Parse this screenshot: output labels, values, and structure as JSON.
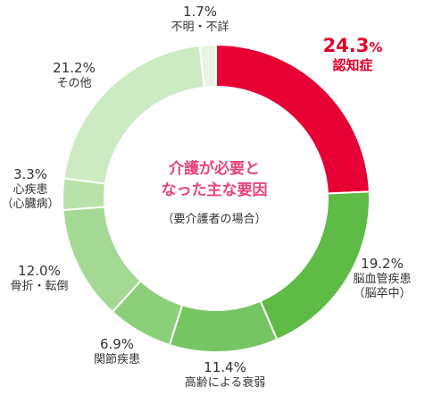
{
  "chart_data": {
    "type": "pie",
    "style": "donut",
    "center_title_lines": [
      "介護が必要と",
      "なった主な要因"
    ],
    "center_subtitle": "（要介護者の場合）",
    "unit": "%",
    "slices": [
      {
        "name_lines": [
          "認知症"
        ],
        "value": 24.3,
        "value_text": "24.3",
        "color": "#e60033",
        "highlight": true
      },
      {
        "name_lines": [
          "脳血管疾患",
          "（脳卒中）"
        ],
        "value": 19.2,
        "value_text": "19.2",
        "color": "#5dbb46"
      },
      {
        "name_lines": [
          "高齢による衰弱"
        ],
        "value": 11.4,
        "value_text": "11.4",
        "color": "#76c563"
      },
      {
        "name_lines": [
          "関節疾患"
        ],
        "value": 6.9,
        "value_text": "6.9",
        "color": "#8ccf7a"
      },
      {
        "name_lines": [
          "骨折・転倒"
        ],
        "value": 12.0,
        "value_text": "12.0",
        "color": "#a4d993"
      },
      {
        "name_lines": [
          "心疾患",
          "（心臓病）"
        ],
        "value": 3.3,
        "value_text": "3.3",
        "color": "#b9e2aa"
      },
      {
        "name_lines": [
          "その他"
        ],
        "value": 21.2,
        "value_text": "21.2",
        "color": "#cdebc2"
      },
      {
        "name_lines": [
          "不明・不詳"
        ],
        "value": 1.7,
        "value_text": "1.7",
        "color": "#e7f4e1"
      }
    ]
  }
}
